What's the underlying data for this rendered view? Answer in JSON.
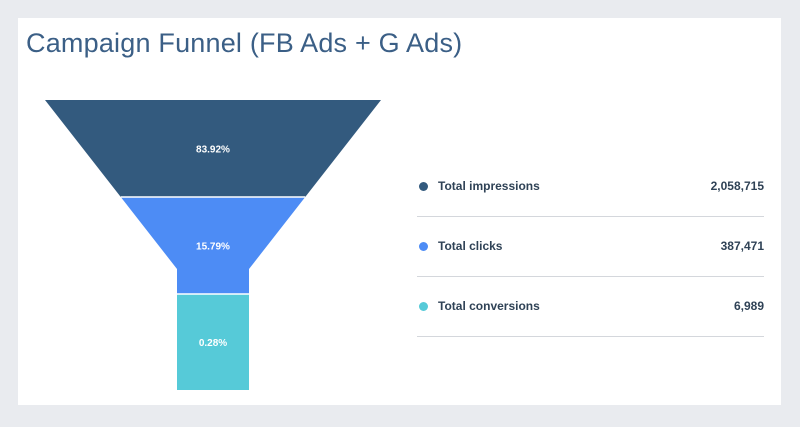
{
  "title": "Campaign Funnel (FB Ads + G Ads)",
  "colors": {
    "impressions": "#335a7e",
    "clicks": "#4d8cf5",
    "conversions": "#56cad8"
  },
  "chart_data": {
    "type": "funnel",
    "title": "Campaign Funnel (FB Ads + G Ads)",
    "stages": [
      {
        "name": "Total impressions",
        "value": 2058715,
        "value_label": "2,058,715",
        "percent": 83.92,
        "percent_label": "83.92%"
      },
      {
        "name": "Total clicks",
        "value": 387471,
        "value_label": "387,471",
        "percent": 15.79,
        "percent_label": "15.79%"
      },
      {
        "name": "Total conversions",
        "value": 6989,
        "value_label": "6,989",
        "percent": 0.28,
        "percent_label": "0.28%"
      }
    ],
    "legend_position": "right"
  }
}
